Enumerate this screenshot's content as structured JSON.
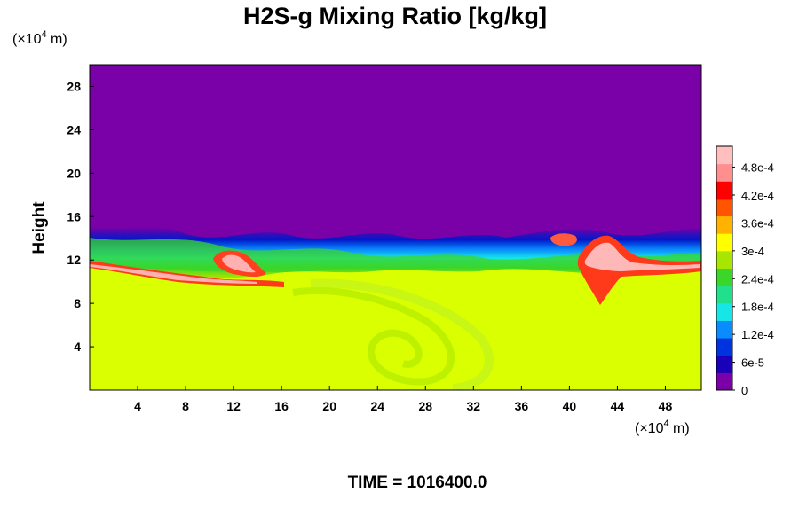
{
  "chart_data": {
    "type": "heatmap",
    "title": "H2S-g Mixing Ratio [kg/kg]",
    "ylabel": "Height",
    "x_unit": {
      "prefix": "(×10",
      "exp": "4",
      "suffix": " m)"
    },
    "y_unit": {
      "prefix": "(×10",
      "exp": "4",
      "suffix": " m)"
    },
    "xlim": [
      0,
      51
    ],
    "ylim": [
      0,
      30
    ],
    "x_ticks": [
      "4",
      "8",
      "12",
      "16",
      "20",
      "24",
      "28",
      "32",
      "36",
      "40",
      "44",
      "48"
    ],
    "y_ticks": [
      "4",
      "8",
      "12",
      "16",
      "20",
      "24",
      "28"
    ],
    "colorbar": {
      "labels": [
        "0",
        "6e-5",
        "1.2e-4",
        "1.8e-4",
        "2.4e-4",
        "3e-4",
        "3.6e-4",
        "4.2e-4",
        "4.8e-4"
      ],
      "min": 0,
      "max": 0.000525,
      "colors": [
        "#7a00a8",
        "#1a00b8",
        "#0033e0",
        "#0a8cff",
        "#17e6e6",
        "#20e08c",
        "#3ad62a",
        "#a6e600",
        "#ffff00",
        "#ffb300",
        "#ff5500",
        "#ff0000",
        "#ff8f8f",
        "#ffbfbf"
      ]
    },
    "layers": {
      "upper_value": 0,
      "upper_color": "#7a00a8",
      "lower_value": 0.00035,
      "lower_color": "#d9ff00",
      "mixing_zone_height_range": [
        10.5,
        15
      ]
    },
    "footer": "TIME = 1016400.0"
  }
}
